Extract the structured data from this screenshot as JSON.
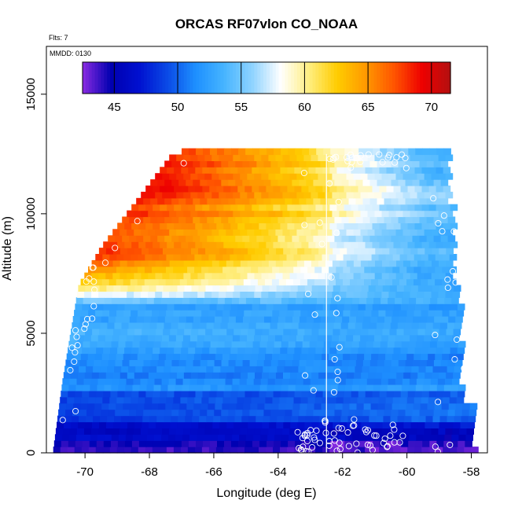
{
  "chart_data": {
    "type": "heatmap",
    "title": "ORCAS RF07vlon CO_NOAA",
    "subtitle_flights": "Flts: 7",
    "subtitle_date": "MMDD: 0130",
    "xlabel": "Longitude (deg E)",
    "ylabel": "Altitude (m)",
    "xlim": [
      -71.2,
      -57.5
    ],
    "ylim": [
      0,
      17000
    ],
    "x_ticks": [
      -70,
      -68,
      -66,
      -64,
      -62,
      -60,
      -58
    ],
    "y_ticks": [
      0,
      5000,
      10000,
      15000
    ],
    "colorbar": {
      "range": [
        42.5,
        71.5
      ],
      "ticks": [
        45,
        50,
        55,
        60,
        65,
        70
      ],
      "colors": [
        "#8a2be2",
        "#0000b0",
        "#0010d0",
        "#0a4ae6",
        "#1e90ff",
        "#46b4ff",
        "#8fd3ff",
        "#ffffff",
        "#ffee80",
        "#ffcc00",
        "#ff9900",
        "#ff5500",
        "#ee0000",
        "#b31010"
      ]
    },
    "field_profile": {
      "altitudes_m": [
        0,
        600,
        1500,
        2500,
        3500,
        4500,
        5500,
        6200,
        6800,
        7500,
        8000,
        8800,
        9500,
        10500,
        11500,
        12500
      ],
      "co_west_ppb": [
        45,
        46,
        48,
        50.5,
        52,
        53.5,
        52,
        54,
        60,
        65,
        68,
        66,
        67,
        68,
        69,
        67
      ],
      "co_east_ppb": [
        45,
        46,
        50,
        51,
        51.5,
        52.5,
        52,
        53,
        52,
        53,
        54,
        52,
        54,
        55,
        54,
        53
      ]
    },
    "vertical_line_lon": -62.5,
    "sample_point_count": 140
  }
}
